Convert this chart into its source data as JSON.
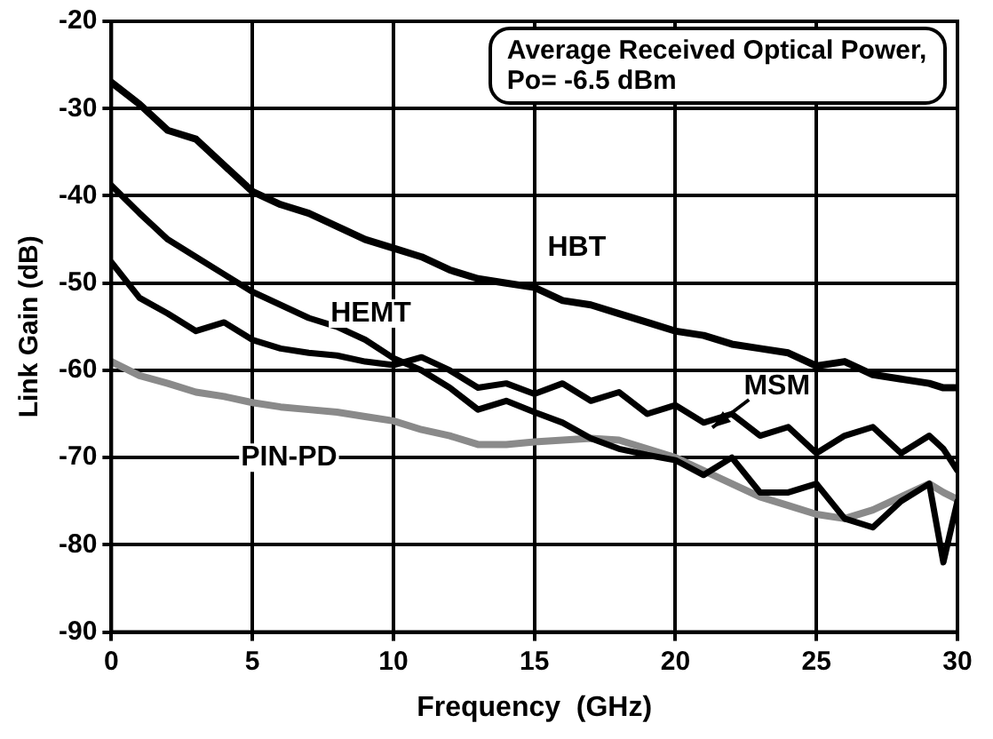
{
  "chart_data": {
    "type": "line",
    "xlabel": "Frequency  (GHz)",
    "ylabel": "Link Gain (dB)",
    "annotations": [
      "Average Received Optical Power, Po= -6.5 dBm"
    ],
    "x": [
      0,
      1,
      2,
      3,
      4,
      5,
      6,
      7,
      8,
      9,
      10,
      11,
      12,
      13,
      14,
      15,
      16,
      17,
      18,
      19,
      20,
      21,
      22,
      23,
      24,
      25,
      26,
      27,
      28,
      29,
      29.5,
      30
    ],
    "series": [
      {
        "name": "HBT",
        "color": "#000000",
        "values": [
          -27,
          -29.5,
          -32.5,
          -33.5,
          -36.5,
          -39.5,
          -41,
          -42,
          -43.5,
          -45,
          -46,
          -47,
          -48.5,
          -49.5,
          -50,
          -50.5,
          -52,
          -52.5,
          -53.5,
          -54.5,
          -55.5,
          -56,
          -57,
          -57.5,
          -58,
          -59.5,
          -59,
          -60.5,
          -61,
          -61.5,
          -62,
          -62
        ]
      },
      {
        "name": "HEMT",
        "color": "#000000",
        "values": [
          -38.8,
          -42,
          -45,
          -47,
          -49,
          -51,
          -52.5,
          -54,
          -55,
          -56.5,
          -58.6,
          -60,
          -62,
          -64.5,
          -63.5,
          -64.8,
          -66,
          -67.8,
          -69,
          -69.7,
          -70.3,
          -72,
          -70,
          -74,
          -74,
          -73,
          -77,
          -78,
          -75,
          -73,
          -82,
          -75
        ]
      },
      {
        "name": "MSM",
        "color": "#000000",
        "values": [
          -47.6,
          -51.7,
          -53.5,
          -55.5,
          -54.5,
          -56.5,
          -57.5,
          -58,
          -58.3,
          -59,
          -59.4,
          -58.5,
          -60,
          -62,
          -61.5,
          -62.7,
          -61.5,
          -63.5,
          -62.5,
          -65,
          -64,
          -66,
          -65,
          -67.5,
          -66.5,
          -69.5,
          -67.5,
          -66.5,
          -69.5,
          -67.5,
          -69,
          -71.5
        ]
      },
      {
        "name": "PIN-PD",
        "color": "#8a8a8a",
        "values": [
          -59,
          -60.6,
          -61.5,
          -62.5,
          -63,
          -63.7,
          -64.2,
          -64.5,
          -64.8,
          -65.3,
          -65.8,
          -66.8,
          -67.5,
          -68.5,
          -68.5,
          -68.2,
          -68,
          -67.8,
          -68,
          -69,
          -70,
          -71.5,
          -73,
          -74.5,
          -75.5,
          -76.5,
          -77,
          -76,
          -74.5,
          -73,
          -74,
          -74.8
        ]
      }
    ],
    "xlim": [
      0,
      30
    ],
    "xticks": [
      0,
      5,
      10,
      15,
      20,
      25,
      30
    ],
    "ylim": [
      -90,
      -20
    ],
    "yticks": [
      -90,
      -80,
      -70,
      -60,
      -50,
      -40,
      -30,
      -20
    ],
    "grid": true,
    "legend": false,
    "marker": "none",
    "line_style": "solid"
  }
}
